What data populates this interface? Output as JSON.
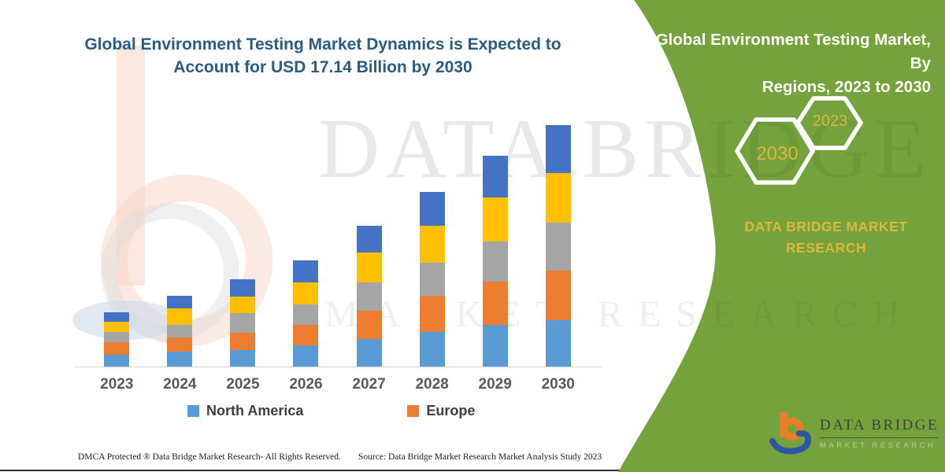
{
  "colors": {
    "panel_green": "#76A23E",
    "gold": "#D9B83D",
    "title_blue": "#2A5B84",
    "axis_gray": "#595959",
    "north_america_blue": "#5B9BD5",
    "europe_orange": "#ED7D31",
    "series_gray": "#A5A5A5",
    "series_yellow": "#FFC000",
    "series_dark_blue": "#4472C4"
  },
  "chart": {
    "title_lines": [
      "Global Environment Testing Market Dynamics is Expected to",
      "Account for USD 17.14 Billion by 2030"
    ]
  },
  "legend": {
    "items": [
      {
        "label": "North America",
        "color": "#5B9BD5"
      },
      {
        "label": "Europe",
        "color": "#ED7D31"
      }
    ]
  },
  "side_panel": {
    "heading_lines": [
      "Global Environment Testing Market, By",
      "Regions, 2023 to 2030"
    ],
    "hexagon_large_label": "2030",
    "hexagon_small_label": "2023",
    "brand_lines": [
      "DATA BRIDGE MARKET",
      "RESEARCH"
    ]
  },
  "watermark": {
    "line1": "DATA BRIDGE",
    "line2": "MARKET RESEARCH"
  },
  "footer": {
    "dmca": "DMCA Protected ® Data Bridge Market Research-  All Rights Reserved.",
    "source": "Source: Data Bridge Market Research  Market Analysis Study 2023"
  },
  "corner_logo": {
    "title": "DATA BRIDGE",
    "subtitle": "MARKET RESEARCH"
  },
  "chart_data": {
    "type": "bar",
    "stacked": true,
    "unit": "USD Billion",
    "title": "Global Environment Testing Market Dynamics is Expected to Account for USD 17.14 Billion by 2030",
    "categories": [
      "2023",
      "2024",
      "2025",
      "2026",
      "2027",
      "2028",
      "2029",
      "2030"
    ],
    "series": [
      {
        "name": "North America",
        "color": "#5B9BD5",
        "in_legend": true,
        "values": [
          0.82,
          1.08,
          1.17,
          1.49,
          1.97,
          2.48,
          2.98,
          3.28
        ]
      },
      {
        "name": "Europe",
        "color": "#ED7D31",
        "in_legend": true,
        "values": [
          0.89,
          0.97,
          1.21,
          1.49,
          2.0,
          2.55,
          3.04,
          3.52
        ]
      },
      {
        "name": "",
        "color": "#A5A5A5",
        "in_legend": false,
        "values": [
          0.74,
          0.93,
          1.4,
          1.45,
          2.01,
          2.36,
          2.87,
          3.45
        ]
      },
      {
        "name": "",
        "color": "#FFC000",
        "in_legend": false,
        "values": [
          0.71,
          1.16,
          1.21,
          1.55,
          2.14,
          2.61,
          3.09,
          3.47
        ]
      },
      {
        "name": "",
        "color": "#4472C4",
        "in_legend": false,
        "values": [
          0.69,
          0.89,
          1.21,
          1.53,
          1.9,
          2.42,
          2.98,
          3.42
        ]
      }
    ],
    "totals": [
      3.85,
      5.03,
      6.2,
      7.51,
      10.02,
      12.42,
      14.96,
      17.14
    ],
    "ylim": [
      0,
      18
    ],
    "y_axis_visible": false,
    "gridlines": false,
    "legend_position": "bottom"
  }
}
